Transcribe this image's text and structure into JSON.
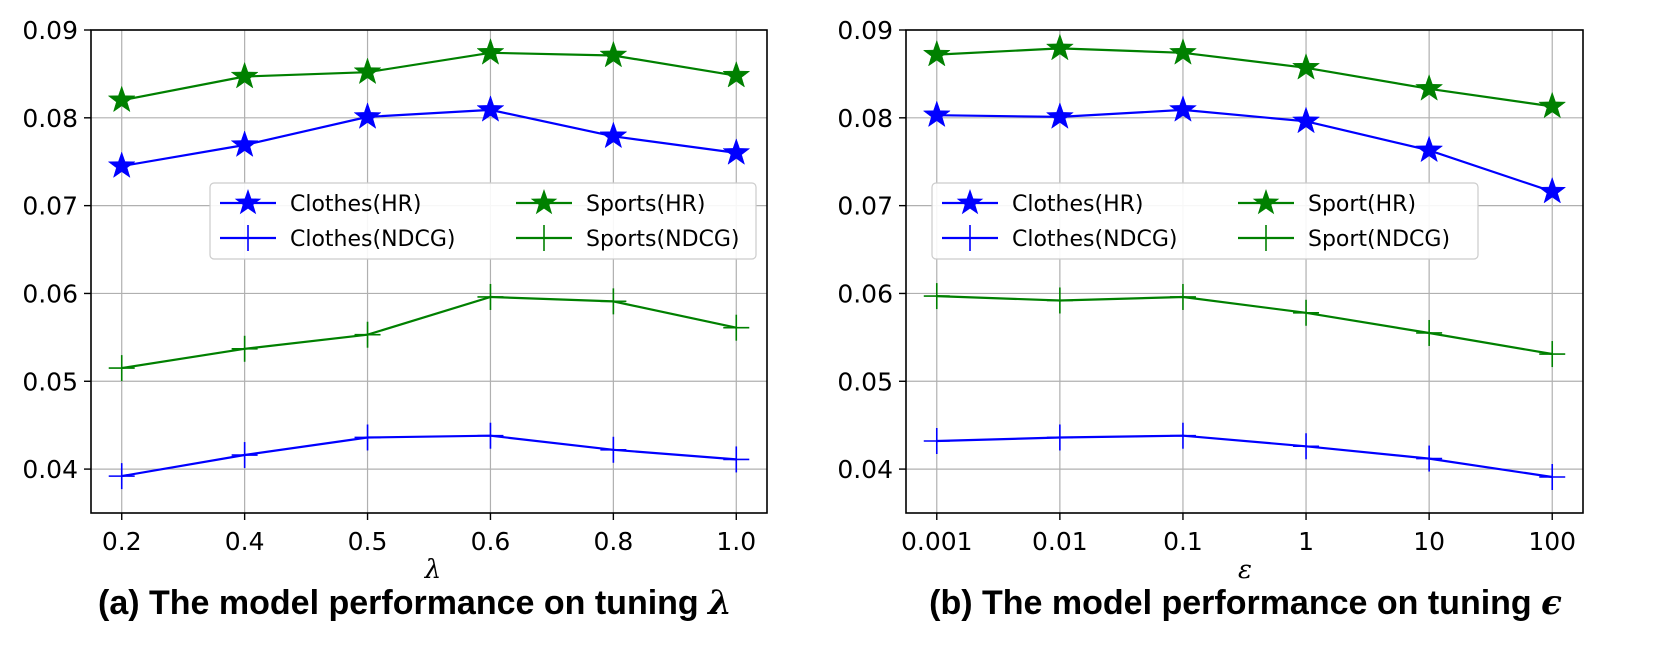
{
  "chart_data": [
    {
      "type": "line",
      "categories": [
        "0.2",
        "0.4",
        "0.5",
        "0.6",
        "0.8",
        "1.0"
      ],
      "xlabel": "λ",
      "ylabel": "",
      "ylim": [
        0.035,
        0.09
      ],
      "yticks": [
        "0.04",
        "0.05",
        "0.06",
        "0.07",
        "0.08",
        "0.09"
      ],
      "ytick_values": [
        0.04,
        0.05,
        0.06,
        0.07,
        0.08,
        0.09
      ],
      "grid": true,
      "legend_position": "center-right",
      "caption": "(a) The model performance on tuning",
      "caption_symbol": "λ",
      "series": [
        {
          "name": "Clothes(HR)",
          "marker": "star",
          "color": "#0000ff",
          "values": [
            0.0745,
            0.0769,
            0.0801,
            0.0809,
            0.0779,
            0.076
          ]
        },
        {
          "name": "Clothes(NDCG)",
          "marker": "plus",
          "color": "#0000ff",
          "values": [
            0.0392,
            0.0416,
            0.0436,
            0.0438,
            0.0422,
            0.0411
          ]
        },
        {
          "name": "Sports(HR)",
          "marker": "star",
          "color": "#008000",
          "values": [
            0.082,
            0.0847,
            0.0852,
            0.0874,
            0.0871,
            0.0848
          ]
        },
        {
          "name": "Sports(NDCG)",
          "marker": "plus",
          "color": "#008000",
          "values": [
            0.0515,
            0.0537,
            0.0553,
            0.0596,
            0.0591,
            0.0561
          ]
        }
      ]
    },
    {
      "type": "line",
      "categories": [
        "0.001",
        "0.01",
        "0.1",
        "1",
        "10",
        "100"
      ],
      "xlabel": "ε",
      "ylabel": "",
      "ylim": [
        0.035,
        0.09
      ],
      "yticks": [
        "0.04",
        "0.05",
        "0.06",
        "0.07",
        "0.08",
        "0.09"
      ],
      "ytick_values": [
        0.04,
        0.05,
        0.06,
        0.07,
        0.08,
        0.09
      ],
      "grid": true,
      "legend_position": "center-right",
      "caption": "(b) The model performance on tuning",
      "caption_symbol": "ϵ",
      "series": [
        {
          "name": "Clothes(HR)",
          "marker": "star",
          "color": "#0000ff",
          "values": [
            0.0803,
            0.0801,
            0.0809,
            0.0796,
            0.0763,
            0.0716
          ]
        },
        {
          "name": "Clothes(NDCG)",
          "marker": "plus",
          "color": "#0000ff",
          "values": [
            0.0432,
            0.0436,
            0.0438,
            0.0426,
            0.0412,
            0.0391
          ]
        },
        {
          "name": "Sport(HR)",
          "marker": "star",
          "color": "#008000",
          "values": [
            0.0872,
            0.0879,
            0.0874,
            0.0857,
            0.0833,
            0.0813
          ]
        },
        {
          "name": "Sport(NDCG)",
          "marker": "plus",
          "color": "#008000",
          "values": [
            0.0597,
            0.0592,
            0.0596,
            0.0578,
            0.0555,
            0.0531
          ]
        }
      ]
    }
  ]
}
